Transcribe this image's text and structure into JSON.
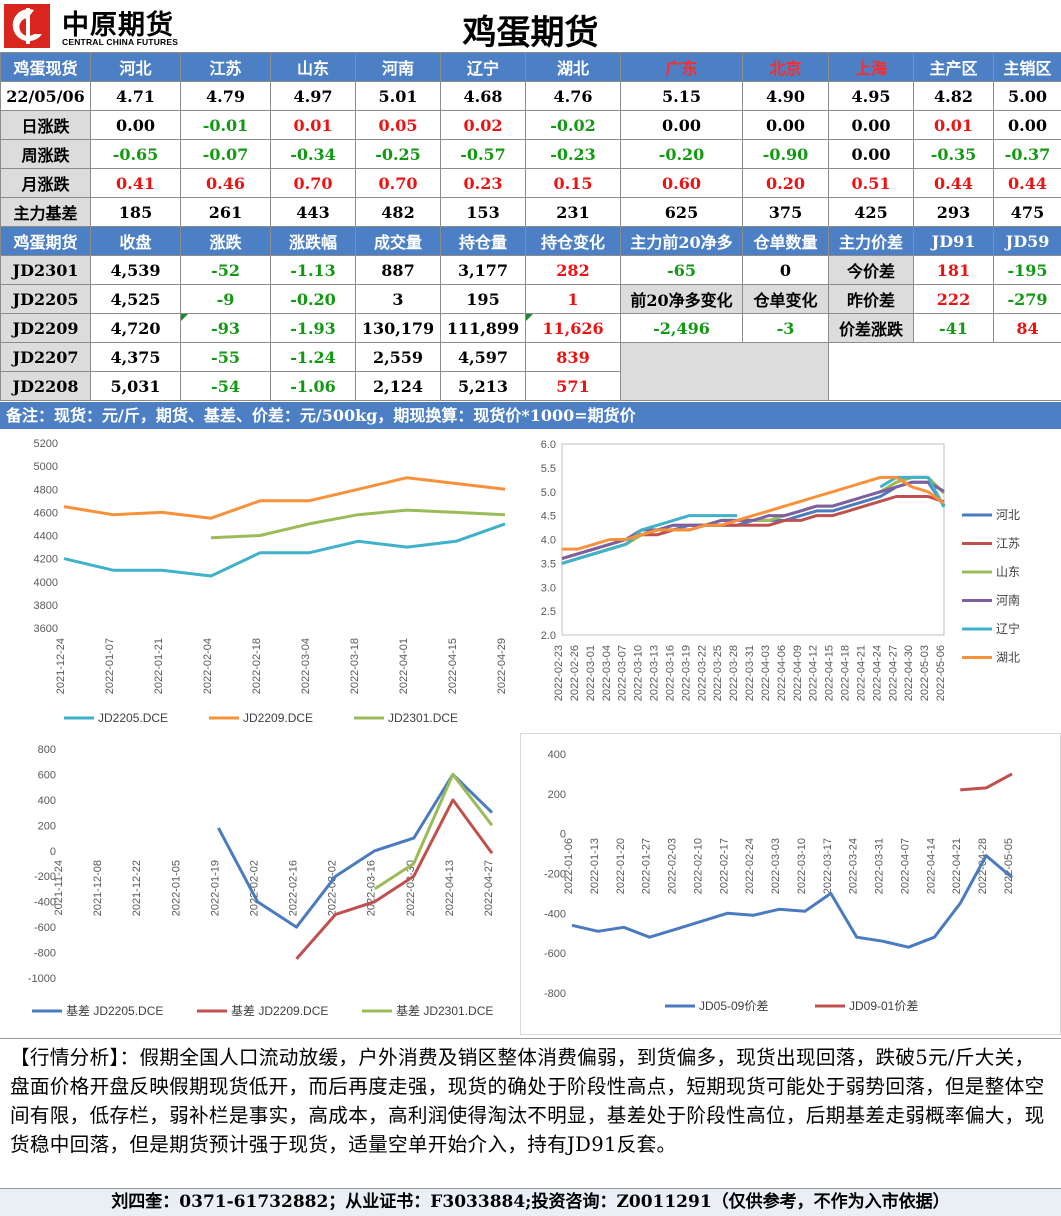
{
  "header": {
    "logo_cn": "中原期货",
    "logo_en": "CENTRAL CHINA FUTURES",
    "title": "鸡蛋期货"
  },
  "spot": {
    "header_label": "鸡蛋现货",
    "regions": [
      "河北",
      "江苏",
      "山东",
      "河南",
      "辽宁",
      "湖北",
      "广东",
      "北京",
      "上海",
      "主产区",
      "主销区"
    ],
    "rows": [
      {
        "label": "22/05/06",
        "values": [
          "4.71",
          "4.79",
          "4.97",
          "5.01",
          "4.68",
          "4.76",
          "5.15",
          "4.90",
          "4.95",
          "4.82",
          "5.00"
        ]
      },
      {
        "label": "日涨跌",
        "values": [
          "0.00",
          "-0.01",
          "0.01",
          "0.05",
          "0.02",
          "-0.02",
          "0.00",
          "0.00",
          "0.00",
          "0.01",
          "0.00"
        ]
      },
      {
        "label": "周涨跌",
        "values": [
          "-0.65",
          "-0.07",
          "-0.34",
          "-0.25",
          "-0.57",
          "-0.23",
          "-0.20",
          "-0.90",
          "0.00",
          "-0.35",
          "-0.37"
        ]
      },
      {
        "label": "月涨跌",
        "values": [
          "0.41",
          "0.46",
          "0.70",
          "0.70",
          "0.23",
          "0.15",
          "0.60",
          "0.20",
          "0.51",
          "0.44",
          "0.44"
        ]
      },
      {
        "label": "主力基差",
        "values": [
          "185",
          "261",
          "443",
          "482",
          "153",
          "231",
          "625",
          "375",
          "425",
          "293",
          "475"
        ]
      }
    ]
  },
  "futures": {
    "headers": [
      "鸡蛋期货",
      "收盘",
      "涨跌",
      "涨跌幅",
      "成交量",
      "持仓量",
      "持仓变化",
      "主力前20净多",
      "仓单数量",
      "主力价差",
      "JD91",
      "JD59"
    ],
    "contracts": [
      {
        "code": "JD2301",
        "close": "4,539",
        "change": "-52",
        "pct": "-1.13",
        "volume": "887",
        "oi": "3,177",
        "oi_change": "282"
      },
      {
        "code": "JD2205",
        "close": "4,525",
        "change": "-9",
        "pct": "-0.20",
        "volume": "3",
        "oi": "195",
        "oi_change": "1"
      },
      {
        "code": "JD2209",
        "close": "4,720",
        "change": "-93",
        "pct": "-1.93",
        "volume": "130,179",
        "oi": "111,899",
        "oi_change": "11,626"
      },
      {
        "code": "JD2207",
        "close": "4,375",
        "change": "-55",
        "pct": "-1.24",
        "volume": "2,559",
        "oi": "4,597",
        "oi_change": "839"
      },
      {
        "code": "JD2208",
        "close": "5,031",
        "change": "-54",
        "pct": "-1.06",
        "volume": "2,124",
        "oi": "5,213",
        "oi_change": "571"
      }
    ],
    "net_long_top20": "-65",
    "warehouse_receipts": "0",
    "net_long_change_label": "前20净多变化",
    "receipt_change_label": "仓单变化",
    "net_long_change": "-2,496",
    "receipt_change": "-3",
    "spread_rows": [
      {
        "label": "今价差",
        "jd91": "181",
        "jd59": "-195"
      },
      {
        "label": "昨价差",
        "jd91": "222",
        "jd59": "-279"
      },
      {
        "label": "价差涨跌",
        "jd91": "-41",
        "jd59": "84"
      }
    ]
  },
  "note": "备注：现货：元/斤，期货、基差、价差：元/500kg，期现换算：现货价*1000=期货价",
  "colors": {
    "header_blue": "#4c7fc4",
    "up": "#ee1111",
    "down": "#119911",
    "series_blue": "#3fb1c9",
    "series_orange": "#f7913a",
    "series_green": "#9bbb59",
    "series_red": "#c0504d",
    "series_purple": "#7f5f9f",
    "series_darkblue": "#4a7bc0"
  },
  "chart_data": [
    {
      "type": "line",
      "x": [
        "2021-12-24",
        "2022-01-07",
        "2022-01-21",
        "2022-02-04",
        "2022-02-18",
        "2022-03-04",
        "2022-03-18",
        "2022-04-01",
        "2022-04-15",
        "2022-04-29"
      ],
      "ylim": [
        3600,
        5200
      ],
      "yticks": [
        "5200",
        "5000",
        "4800",
        "4600",
        "4400",
        "4200",
        "4000",
        "3800",
        "3600"
      ],
      "series": [
        {
          "name": "JD2205.DCE",
          "color": "#3fb1c9",
          "values": [
            4200,
            4100,
            4100,
            4050,
            4250,
            4250,
            4350,
            4300,
            4350,
            4500
          ]
        },
        {
          "name": "JD2209.DCE",
          "color": "#f7913a",
          "values": [
            4650,
            4580,
            4600,
            4550,
            4700,
            4700,
            4800,
            4900,
            4850,
            4800
          ]
        },
        {
          "name": "JD2301.DCE",
          "color": "#9bbb59",
          "values": [
            null,
            null,
            null,
            4380,
            4400,
            4500,
            4580,
            4620,
            4600,
            4580
          ]
        }
      ]
    },
    {
      "type": "line",
      "x": [
        "2022-02-23",
        "2022-02-26",
        "2022-03-01",
        "2022-03-04",
        "2022-03-07",
        "2022-03-10",
        "2022-03-13",
        "2022-03-16",
        "2022-03-19",
        "2022-03-22",
        "2022-03-25",
        "2022-03-28",
        "2022-03-31",
        "2022-04-03",
        "2022-04-06",
        "2022-04-09",
        "2022-04-12",
        "2022-04-15",
        "2022-04-18",
        "2022-04-21",
        "2022-04-24",
        "2022-04-27",
        "2022-04-30",
        "2022-05-03",
        "2022-05-06"
      ],
      "ylim": [
        2.0,
        6.0
      ],
      "yticks": [
        "6.0",
        "5.5",
        "5.0",
        "4.5",
        "4.0",
        "3.5",
        "3.0",
        "2.5",
        "2.0"
      ],
      "series": [
        {
          "name": "河北",
          "color": "#4a7bc0",
          "values": [
            3.5,
            3.6,
            3.7,
            3.8,
            3.9,
            4.1,
            4.2,
            4.2,
            4.3,
            4.3,
            4.3,
            4.3,
            4.4,
            4.4,
            4.4,
            4.5,
            4.6,
            4.6,
            4.7,
            4.8,
            4.9,
            5.1,
            5.2,
            5.2,
            4.71
          ]
        },
        {
          "name": "江苏",
          "color": "#c0504d",
          "values": [
            3.6,
            3.7,
            3.8,
            3.9,
            4.0,
            4.1,
            4.1,
            4.2,
            4.2,
            4.3,
            4.3,
            4.3,
            4.3,
            4.3,
            4.4,
            4.4,
            4.5,
            4.5,
            4.6,
            4.7,
            4.8,
            4.9,
            4.9,
            4.9,
            4.79
          ]
        },
        {
          "name": "山东",
          "color": "#9bbb59",
          "values": [
            3.5,
            3.6,
            3.7,
            3.8,
            3.9,
            4.1,
            4.2,
            4.3,
            4.3,
            4.3,
            4.4,
            4.4,
            4.4,
            4.4,
            4.5,
            4.6,
            4.7,
            4.7,
            4.8,
            4.9,
            5.0,
            5.2,
            5.3,
            5.3,
            4.97
          ]
        },
        {
          "name": "河南",
          "color": "#7f5f9f",
          "values": [
            3.6,
            3.7,
            3.8,
            3.9,
            4.0,
            4.2,
            4.2,
            4.3,
            4.3,
            4.3,
            4.4,
            4.4,
            4.4,
            4.5,
            4.5,
            4.6,
            4.7,
            4.7,
            4.8,
            4.9,
            5.0,
            5.1,
            5.2,
            5.2,
            5.01
          ]
        },
        {
          "name": "辽宁",
          "color": "#3fb1c9",
          "values": [
            3.5,
            3.6,
            3.7,
            3.8,
            3.9,
            4.2,
            4.3,
            4.4,
            4.5,
            4.5,
            4.5,
            4.5,
            null,
            null,
            null,
            null,
            null,
            null,
            null,
            null,
            5.1,
            5.3,
            5.3,
            5.3,
            4.68
          ]
        },
        {
          "name": "湖北",
          "color": "#f7913a",
          "values": [
            3.8,
            3.8,
            3.9,
            4.0,
            4.0,
            4.1,
            4.2,
            4.2,
            4.2,
            4.3,
            4.3,
            4.4,
            4.5,
            4.6,
            4.7,
            4.8,
            4.9,
            5.0,
            5.1,
            5.2,
            5.3,
            5.3,
            5.1,
            5.0,
            4.76
          ]
        }
      ]
    },
    {
      "type": "line",
      "x": [
        "2021-11-24",
        "2021-12-08",
        "2021-12-22",
        "2022-01-05",
        "2022-01-19",
        "2022-02-02",
        "2022-02-16",
        "2022-03-02",
        "2022-03-16",
        "2022-03-30",
        "2022-04-13",
        "2022-04-27"
      ],
      "ylim": [
        -1000,
        800
      ],
      "yticks": [
        "800",
        "600",
        "400",
        "200",
        "0",
        "-200",
        "-400",
        "-600",
        "-800",
        "-1000"
      ],
      "series": [
        {
          "name": "基差 JD2205.DCE",
          "color": "#4a7bc0",
          "values": [
            null,
            null,
            null,
            null,
            180,
            -400,
            -600,
            -200,
            0,
            100,
            600,
            300
          ]
        },
        {
          "name": "基差 JD2209.DCE",
          "color": "#c0504d",
          "values": [
            null,
            null,
            null,
            null,
            null,
            null,
            -850,
            -500,
            -400,
            -200,
            400,
            -20
          ]
        },
        {
          "name": "基差 JD2301.DCE",
          "color": "#9bbb59",
          "values": [
            null,
            null,
            null,
            null,
            null,
            null,
            null,
            null,
            -300,
            -100,
            600,
            200
          ]
        }
      ]
    },
    {
      "type": "line",
      "x": [
        "2022-01-06",
        "2022-01-13",
        "2022-01-20",
        "2022-01-27",
        "2022-02-03",
        "2022-02-10",
        "2022-02-17",
        "2022-02-24",
        "2022-03-03",
        "2022-03-10",
        "2022-03-17",
        "2022-03-24",
        "2022-03-31",
        "2022-04-07",
        "2022-04-14",
        "2022-04-21",
        "2022-04-28",
        "2022-05-05"
      ],
      "ylim": [
        -800,
        400
      ],
      "yticks": [
        "400",
        "200",
        "0",
        "-200",
        "-400",
        "-600",
        "-800"
      ],
      "series": [
        {
          "name": "JD05-09价差",
          "color": "#4a7bc0",
          "values": [
            -460,
            -490,
            -470,
            -520,
            -480,
            -440,
            -400,
            -410,
            -380,
            -390,
            -300,
            -520,
            -540,
            -570,
            -520,
            -350,
            -110,
            -220
          ]
        },
        {
          "name": "JD09-01价差",
          "color": "#c0504d",
          "values": [
            null,
            null,
            null,
            null,
            null,
            null,
            null,
            null,
            null,
            null,
            null,
            null,
            null,
            null,
            null,
            220,
            230,
            300
          ]
        }
      ]
    }
  ],
  "analysis": "【行情分析】：假期全国人口流动放缓，户外消费及销区整体消费偏弱，到货偏多，现货出现回落，跌破5元/斤大关，盘面价格开盘反映假期现货低开，而后再度走强，现货的确处于阶段性高点，短期现货可能处于弱势回落，但是整体空间有限，低存栏，弱补栏是事实，高成本，高利润使得淘汰不明显，基差处于阶段性高位，后期基差走弱概率偏大，现货稳中回落，但是期货预计强于现货，适量空单开始介入，持有JD91反套。",
  "footer": "刘四奎：0371-61732882；从业证书：F3033884;投资咨询：Z0011291（仅供参考，不作为入市依据）"
}
